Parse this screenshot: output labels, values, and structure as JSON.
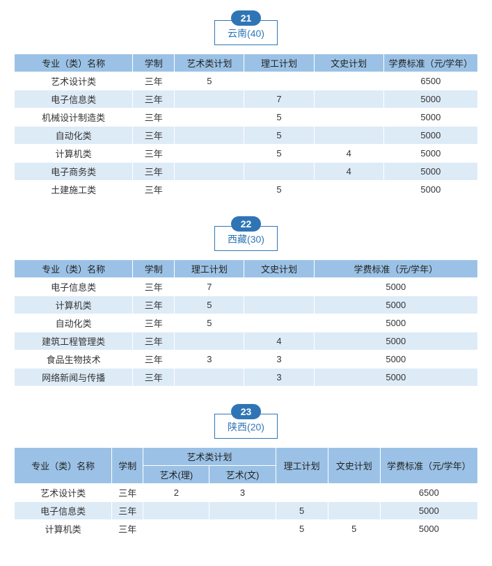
{
  "colors": {
    "header_bg": "#9bc2e6",
    "row_even_bg": "#ddebf7",
    "row_odd_bg": "#ffffff",
    "border": "#ffffff",
    "badge_bg": "#2f75b5",
    "badge_text": "#ffffff",
    "title_border": "#2f75b5",
    "title_text": "#2f75b5"
  },
  "sections": [
    {
      "badge": "21",
      "title": "云南(40)",
      "columns": [
        "专业（类）名称",
        "学制",
        "艺术类计划",
        "理工计划",
        "文史计划",
        "学费标准（元/学年）"
      ],
      "col_widths": [
        "170",
        "60",
        "100",
        "100",
        "100",
        "135"
      ],
      "rows": [
        [
          "艺术设计类",
          "三年",
          "5",
          "",
          "",
          "6500"
        ],
        [
          "电子信息类",
          "三年",
          "",
          "7",
          "",
          "5000"
        ],
        [
          "机械设计制造类",
          "三年",
          "",
          "5",
          "",
          "5000"
        ],
        [
          "自动化类",
          "三年",
          "",
          "5",
          "",
          "5000"
        ],
        [
          "计算机类",
          "三年",
          "",
          "5",
          "4",
          "5000"
        ],
        [
          "电子商务类",
          "三年",
          "",
          "",
          "4",
          "5000"
        ],
        [
          "土建施工类",
          "三年",
          "",
          "5",
          "",
          "5000"
        ]
      ]
    },
    {
      "badge": "22",
      "title": "西藏(30)",
      "columns": [
        "专业（类）名称",
        "学制",
        "理工计划",
        "文史计划",
        "学费标准（元/学年）"
      ],
      "col_widths": [
        "170",
        "60",
        "100",
        "100",
        "235"
      ],
      "rows": [
        [
          "电子信息类",
          "三年",
          "7",
          "",
          "5000"
        ],
        [
          "计算机类",
          "三年",
          "5",
          "",
          "5000"
        ],
        [
          "自动化类",
          "三年",
          "5",
          "",
          "5000"
        ],
        [
          "建筑工程管理类",
          "三年",
          "",
          "4",
          "5000"
        ],
        [
          "食品生物技术",
          "三年",
          "3",
          "3",
          "5000"
        ],
        [
          "网络新闻与传播",
          "三年",
          "",
          "3",
          "5000"
        ]
      ]
    }
  ],
  "section3": {
    "badge": "23",
    "title": "陕西(20)",
    "header_group": "艺术类计划",
    "columns_row1": [
      "专业（类）名称",
      "学制",
      "理工计划",
      "文史计划",
      "学费标准（元/学年）"
    ],
    "sub_columns": [
      "艺术(理)",
      "艺术(文)"
    ],
    "col_widths": [
      "140",
      "45",
      "95",
      "95",
      "75",
      "75",
      "140"
    ],
    "rows": [
      [
        "艺术设计类",
        "三年",
        "2",
        "3",
        "",
        "",
        "6500"
      ],
      [
        "电子信息类",
        "三年",
        "",
        "",
        "5",
        "",
        "5000"
      ],
      [
        "计算机类",
        "三年",
        "",
        "",
        "5",
        "5",
        "5000"
      ]
    ]
  }
}
